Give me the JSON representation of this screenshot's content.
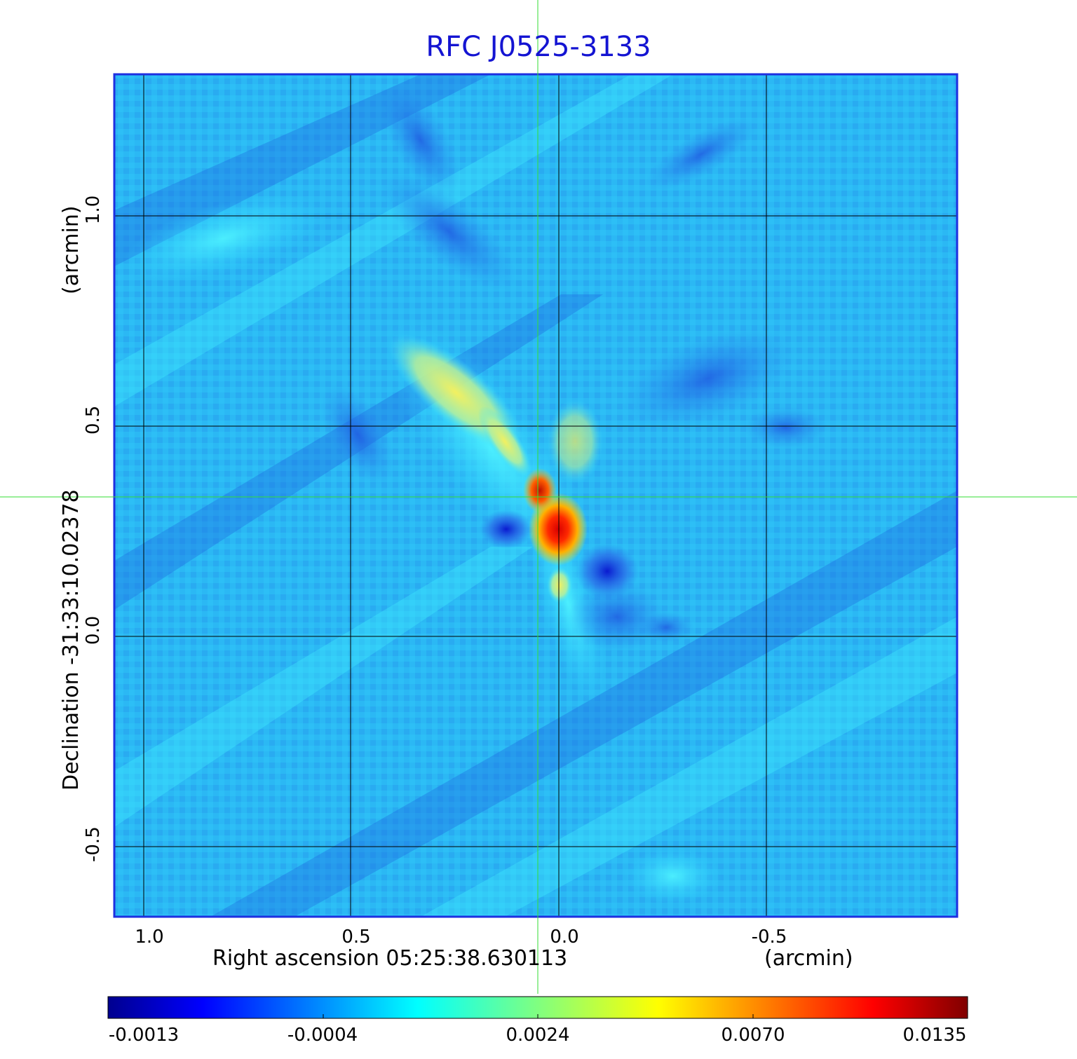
{
  "title": "RFC J0525-3133",
  "x_axis": {
    "label": "Right ascension  05:25:38.630113",
    "unit": "(arcmin)",
    "ticks": [
      "1.0",
      "0.5",
      "0.0",
      "-0.5"
    ]
  },
  "y_axis": {
    "label": "Declination  -31:33:10.02378",
    "unit": "(arcmin)",
    "ticks": [
      "1.0",
      "0.5",
      "0.0",
      "-0.5"
    ]
  },
  "colorbar": {
    "colormap": "jet",
    "ticks": [
      "-0.0013",
      "-0.0004",
      "0.0024",
      "0.0070",
      "0.0135"
    ]
  },
  "chart_data": {
    "type": "heatmap",
    "title": "RFC J0525-3133",
    "xlabel": "Right ascension  05:25:38.630113 (arcmin)",
    "ylabel": "Declination  -31:33:10.02378 (arcmin)",
    "xlim": [
      1.07,
      -0.95
    ],
    "ylim": [
      -0.67,
      1.34
    ],
    "grid": true,
    "crosshair": {
      "x": 0.05,
      "y": 0.33
    },
    "colorbar_range": [
      -0.0013,
      0.0135
    ],
    "features": [
      {
        "x": 0.0,
        "y": 0.24,
        "value": 0.0135
      },
      {
        "x": 0.05,
        "y": 0.34,
        "value": 0.012
      },
      {
        "x": 0.22,
        "y": 0.61,
        "value": 0.004
      },
      {
        "x": -0.12,
        "y": 0.16,
        "value": -0.0013
      },
      {
        "x": 0.12,
        "y": 0.26,
        "value": -0.0013
      }
    ]
  },
  "colors": {
    "title": "#1414d2",
    "frame": "#1e2fe0",
    "crosshair": "#33dd33",
    "grid": "#000000"
  }
}
